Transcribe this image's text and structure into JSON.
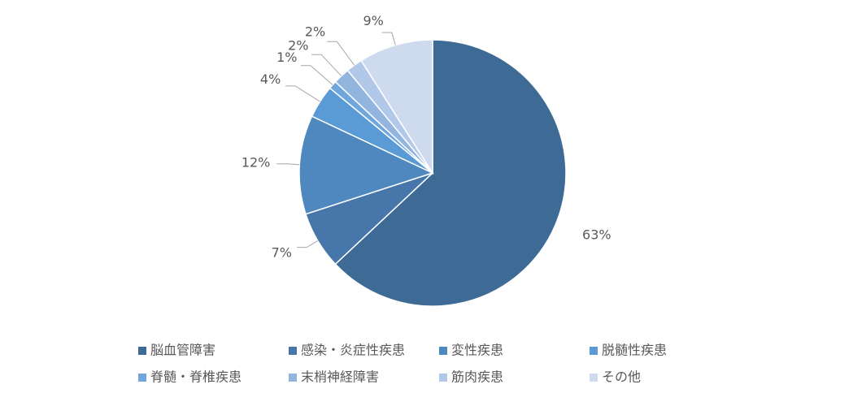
{
  "chart_data": {
    "type": "pie",
    "categories": [
      "脳血管障害",
      "感染・炎症性疾患",
      "変性疾患",
      "脱髄性疾患",
      "脊髄・脊椎疾患",
      "末梢神経障害",
      "筋肉疾患",
      "その他"
    ],
    "values": [
      63,
      7,
      12,
      4,
      1,
      2,
      2,
      9
    ],
    "value_labels": [
      "63%",
      "7%",
      "12%",
      "4%",
      "1%",
      "2%",
      "2%",
      "9%"
    ],
    "colors": [
      "#3e6b96",
      "#4676aa",
      "#4e88bf",
      "#5b9bd5",
      "#70a6dc",
      "#92b5e0",
      "#b2c8e8",
      "#cedbef"
    ]
  }
}
